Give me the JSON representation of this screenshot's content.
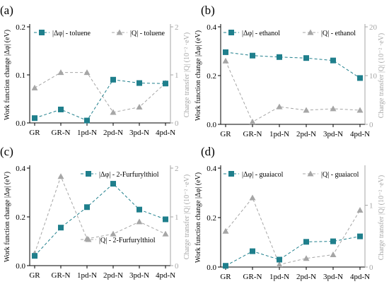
{
  "colors": {
    "teal": "#1f7f8c",
    "gray": "#a6a6a6",
    "axis": "#000000"
  },
  "axis_labels": {
    "left": "Work function change |Δφ| (eV)",
    "right": "Charge transfer |Q| (10⁻² ·eV)"
  },
  "chart_data": [
    {
      "panel_label": "(a)",
      "type": "line",
      "categories": [
        "GR",
        "GR-N",
        "1pd-N",
        "2pd-N",
        "3pd-N",
        "4pd-N"
      ],
      "ylim_left": [
        0,
        0.2
      ],
      "ylim_right": [
        0,
        2
      ],
      "yticks_left": [
        "0.0",
        "0.1",
        "0.2"
      ],
      "yticks_right": [
        "0",
        "1",
        "2"
      ],
      "legend_placement": "top",
      "series": [
        {
          "name": "|Δφ| - toluene",
          "axis": "left",
          "marker": "square",
          "values": [
            0.01,
            0.028,
            0.005,
            0.09,
            0.083,
            0.082
          ]
        },
        {
          "name": "|Q| - toluene",
          "axis": "right",
          "marker": "triangle",
          "values": [
            0.73,
            1.05,
            1.05,
            0.22,
            0.33,
            0.83
          ]
        }
      ]
    },
    {
      "panel_label": "(b)",
      "type": "line",
      "categories": [
        "GR",
        "GR-N",
        "1pd-N",
        "2pd-N",
        "3pd-N",
        "4pd-N"
      ],
      "ylim_left": [
        0,
        0.4
      ],
      "ylim_right": [
        0,
        20
      ],
      "yticks_left": [
        "0.0",
        "0.2",
        "0.4"
      ],
      "yticks_right": [
        "0",
        "10",
        "20"
      ],
      "legend_placement": "top",
      "series": [
        {
          "name": "|Δφ| - ethanol",
          "axis": "left",
          "marker": "square",
          "values": [
            0.296,
            0.282,
            0.276,
            0.272,
            0.262,
            0.19
          ]
        },
        {
          "name": "|Q| - ethanol",
          "axis": "right",
          "marker": "triangle",
          "values": [
            13.0,
            0.5,
            3.6,
            2.9,
            3.2,
            2.9
          ]
        }
      ]
    },
    {
      "panel_label": "(c)",
      "type": "line",
      "categories": [
        "GR",
        "GR-N",
        "1pd-N",
        "2pd-N",
        "3pd-N",
        "4pd-N"
      ],
      "ylim_left": [
        0,
        0.4
      ],
      "ylim_right": [
        0,
        2
      ],
      "yticks_left": [
        "0.0",
        "0.2",
        "0.4"
      ],
      "yticks_right": [
        "0",
        "1",
        "2"
      ],
      "legend_placement": "split: top-right and bottom-right",
      "series": [
        {
          "name": "|Δφ| - 2-Furfurylthiol",
          "axis": "left",
          "marker": "square",
          "values": [
            0.04,
            0.156,
            0.24,
            0.336,
            0.23,
            0.19
          ]
        },
        {
          "name": "|Q| - 2-Furfurylthiol",
          "axis": "right",
          "marker": "triangle",
          "values": [
            0.25,
            1.83,
            0.55,
            0.65,
            0.9,
            0.65
          ]
        }
      ]
    },
    {
      "panel_label": "(d)",
      "type": "line",
      "categories": [
        "GR",
        "GR-N",
        "1pd-N",
        "2pd-N",
        "3pd-N",
        "4pd-N"
      ],
      "ylim_left": [
        0,
        0.4
      ],
      "ylim_right": [
        0,
        1.6
      ],
      "yticks_left": [
        "0.0",
        "0.2",
        "0.4"
      ],
      "yticks_right": [
        "0",
        "1"
      ],
      "legend_placement": "top",
      "series": [
        {
          "name": "|Δφ| - guaiacol",
          "axis": "left",
          "marker": "square",
          "values": [
            0.005,
            0.064,
            0.03,
            0.102,
            0.104,
            0.124
          ]
        },
        {
          "name": "|Q| - guaiacol",
          "axis": "right",
          "marker": "triangle",
          "values": [
            0.58,
            1.12,
            0.04,
            0.14,
            0.2,
            0.92
          ]
        }
      ]
    }
  ]
}
